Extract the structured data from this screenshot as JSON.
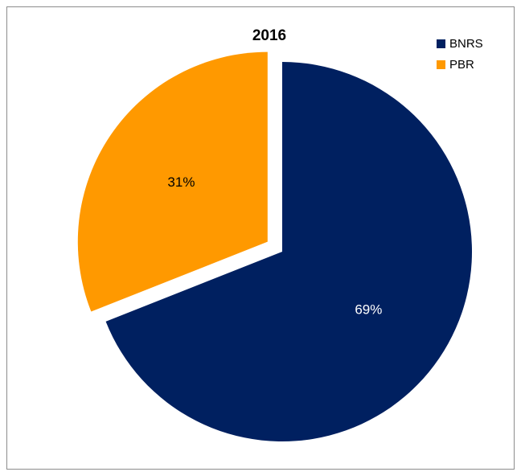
{
  "chart_data": {
    "type": "pie",
    "title": "2016",
    "categories": [
      "BNRS",
      "PBR"
    ],
    "values": [
      69,
      31
    ],
    "value_labels": [
      "69%",
      "31%"
    ],
    "colors": [
      "#002060",
      "#ff9900"
    ],
    "label_colors": [
      "#ffffff",
      "#000000"
    ],
    "legend": "top-right"
  }
}
